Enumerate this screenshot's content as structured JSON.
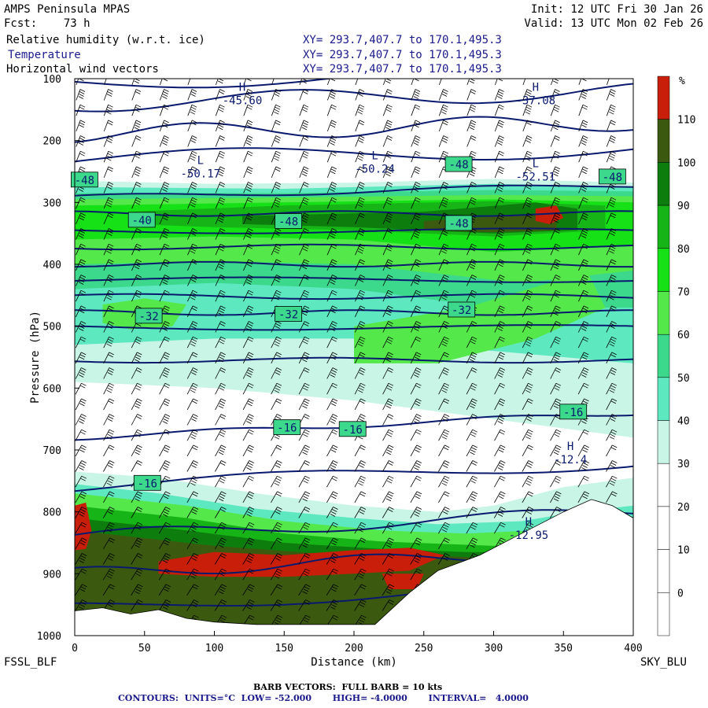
{
  "header": {
    "model": "AMPS Peninsula MPAS",
    "forecast": "Fcst:    73 h",
    "init": "Init: 12 UTC Fri 30 Jan 26",
    "valid": "Valid: 13 UTC Mon 02 Feb 26",
    "fields": [
      {
        "label": "Relative humidity (w.r.t. ice)",
        "xy": "XY= 293.7,407.7 to 170.1,495.3"
      },
      {
        "label": "Temperature",
        "xy": "XY= 293.7,407.7 to 170.1,495.3"
      },
      {
        "label": "Horizontal wind vectors",
        "xy": "XY= 293.7,407.7 to 170.1,495.3"
      }
    ]
  },
  "footer": {
    "left_station": "FSSL_BLF",
    "right_station": "SKY_BLU",
    "barb_note": "BARB VECTORS:  FULL BARB = 10 kts",
    "contour_note": "CONTOURS:  UNITS=°C  LOW= -52.000       HIGH= -4.0000       INTERVAL=   4.0000"
  },
  "colors": {
    "rh_30": "#c8f5e6",
    "rh_40": "#5de8c0",
    "rh_50": "#3cd88c",
    "rh_60": "#55e84a",
    "rh_70": "#16e016",
    "rh_80": "#16b416",
    "rh_90": "#0d7d0d",
    "rh_100": "#3c5a0f",
    "rh_110": "#c81e0a",
    "contour": "#0a1a6e",
    "terrain": "#ffffff",
    "barb": "#000000"
  },
  "chart_data": {
    "type": "heatmap",
    "title": "Relative humidity (w.r.t. ice), Temperature, Horizontal wind vectors",
    "xlabel": "Distance (km)",
    "ylabel": "Pressure (hPa)",
    "xlim": [
      0,
      400
    ],
    "ylim": [
      1000,
      100
    ],
    "x_ticks": [
      0,
      50,
      100,
      150,
      200,
      250,
      300,
      350,
      400
    ],
    "y_ticks": [
      100,
      200,
      300,
      400,
      500,
      600,
      700,
      800,
      900,
      1000
    ],
    "colorbar": {
      "unit": "%",
      "levels": [
        110,
        100,
        90,
        80,
        70,
        60,
        50,
        40,
        30,
        20,
        10,
        0
      ],
      "colors": [
        "#c81e0a",
        "#3c5a0f",
        "#0d7d0d",
        "#16b416",
        "#16e016",
        "#55e84a",
        "#3cd88c",
        "#5de8c0",
        "#c8f5e6",
        "#ffffff",
        "#ffffff",
        "#ffffff",
        "#ffffff"
      ]
    },
    "temperature_contours": {
      "low": -52,
      "high": -4,
      "interval": 4,
      "labels": [
        {
          "x": 7,
          "p": 265,
          "text": "-48"
        },
        {
          "x": 48,
          "p": 330,
          "text": "-40"
        },
        {
          "x": 153,
          "p": 332,
          "text": "-48"
        },
        {
          "x": 275,
          "p": 240,
          "text": "-48"
        },
        {
          "x": 275,
          "p": 335,
          "text": "-48"
        },
        {
          "x": 385,
          "p": 260,
          "text": "-48"
        },
        {
          "x": 53,
          "p": 485,
          "text": "-32"
        },
        {
          "x": 153,
          "p": 482,
          "text": "-32"
        },
        {
          "x": 277,
          "p": 475,
          "text": "-32"
        },
        {
          "x": 152,
          "p": 665,
          "text": "-16"
        },
        {
          "x": 199,
          "p": 668,
          "text": "-16"
        },
        {
          "x": 357,
          "p": 640,
          "text": "-16"
        },
        {
          "x": 52,
          "p": 755,
          "text": "-16"
        }
      ],
      "extrema": [
        {
          "kind": "L",
          "x": 90,
          "p": 238,
          "value": "-50.17"
        },
        {
          "kind": "L",
          "x": 215,
          "p": 230,
          "value": "-50.24"
        },
        {
          "kind": "L",
          "x": 330,
          "p": 243,
          "value": "-52.51"
        },
        {
          "kind": "H",
          "x": 355,
          "p": 700,
          "value": "-12.4"
        },
        {
          "kind": "H",
          "x": 325,
          "p": 822,
          "value": "-12.95"
        },
        {
          "kind": "H",
          "x": 120,
          "p": 120,
          "value": "-45.60"
        },
        {
          "kind": "H",
          "x": 330,
          "p": 120,
          "value": "-37.08"
        }
      ]
    },
    "terrain_top_hpa": [
      [
        0,
        960
      ],
      [
        20,
        955
      ],
      [
        40,
        965
      ],
      [
        60,
        958
      ],
      [
        80,
        972
      ],
      [
        100,
        978
      ],
      [
        130,
        982
      ],
      [
        180,
        982
      ],
      [
        215,
        982
      ],
      [
        240,
        930
      ],
      [
        260,
        895
      ],
      [
        290,
        870
      ],
      [
        320,
        835
      ],
      [
        350,
        800
      ],
      [
        370,
        780
      ],
      [
        385,
        790
      ],
      [
        400,
        810
      ]
    ],
    "wind_barbs": {
      "columns_km_step": 10,
      "levels_hpa_step": 25,
      "full_barb_kts": 10
    }
  }
}
